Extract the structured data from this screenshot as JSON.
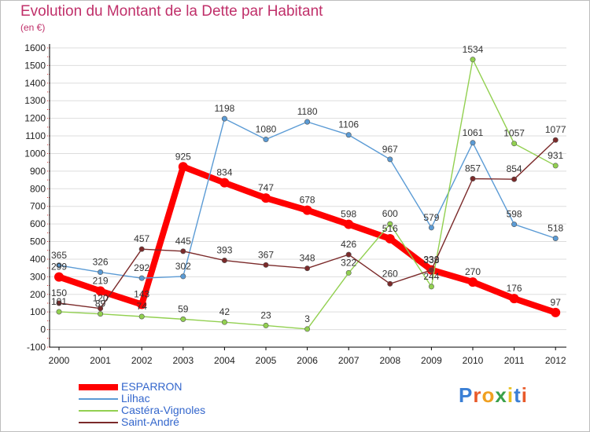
{
  "title": "Evolution du Montant de la Dette par Habitant",
  "subtitle": "(en €)",
  "logo": "Proxiti",
  "colors": {
    "title": "#c0306a",
    "axis": "#000000",
    "grid": "#dddddd",
    "legend_text": "#3366cc"
  },
  "chart_data": {
    "type": "line",
    "title": "Evolution du Montant de la Dette par Habitant",
    "subtitle": "(en €)",
    "xlabel": "",
    "ylabel": "",
    "categories": [
      "2000",
      "2001",
      "2002",
      "2003",
      "2004",
      "2005",
      "2006",
      "2007",
      "2008",
      "2009",
      "2010",
      "2011",
      "2012"
    ],
    "ylim": [
      -100,
      1600
    ],
    "yticks": [
      -100,
      0,
      100,
      200,
      300,
      400,
      500,
      600,
      700,
      800,
      900,
      1000,
      1100,
      1200,
      1300,
      1400,
      1500,
      1600
    ],
    "grid": "horizontal",
    "legend_position": "bottom-left",
    "series": [
      {
        "name": "ESPARRON",
        "color": "#ff0000",
        "width": "thick",
        "values": [
          299,
          219,
          143,
          925,
          834,
          747,
          678,
          598,
          516,
          339,
          270,
          176,
          97
        ],
        "labels": [
          "299",
          "219",
          "143",
          "925",
          "834",
          "747",
          "678",
          "598",
          "516",
          "339",
          "270",
          "176",
          "97"
        ]
      },
      {
        "name": "Lilhac",
        "color": "#5b9bd5",
        "width": "thin",
        "values": [
          365,
          326,
          292,
          302,
          1198,
          1080,
          1180,
          1106,
          967,
          579,
          1061,
          598,
          518
        ],
        "labels": [
          "365",
          "326",
          "292",
          "302",
          "1198",
          "1080",
          "1180",
          "1106",
          "967",
          "579",
          "1061",
          "598",
          "518"
        ]
      },
      {
        "name": "Castéra-Vignoles",
        "color": "#92d050",
        "width": "thin",
        "values": [
          101,
          89,
          74,
          59,
          42,
          23,
          3,
          322,
          600,
          244,
          1534,
          1057,
          931
        ],
        "labels": [
          "101",
          "89",
          "74",
          "59",
          "42",
          "23",
          "3",
          "322",
          "600",
          "244",
          "1534",
          "1057",
          "931"
        ]
      },
      {
        "name": "Saint-André",
        "color": "#7b2a2a",
        "width": "thin",
        "values": [
          150,
          120,
          457,
          445,
          393,
          367,
          348,
          426,
          260,
          338,
          857,
          854,
          1077
        ],
        "labels": [
          "150",
          "120",
          "457",
          "445",
          "393",
          "367",
          "348",
          "426",
          "260",
          "338",
          "857",
          "854",
          "1077"
        ]
      }
    ]
  }
}
